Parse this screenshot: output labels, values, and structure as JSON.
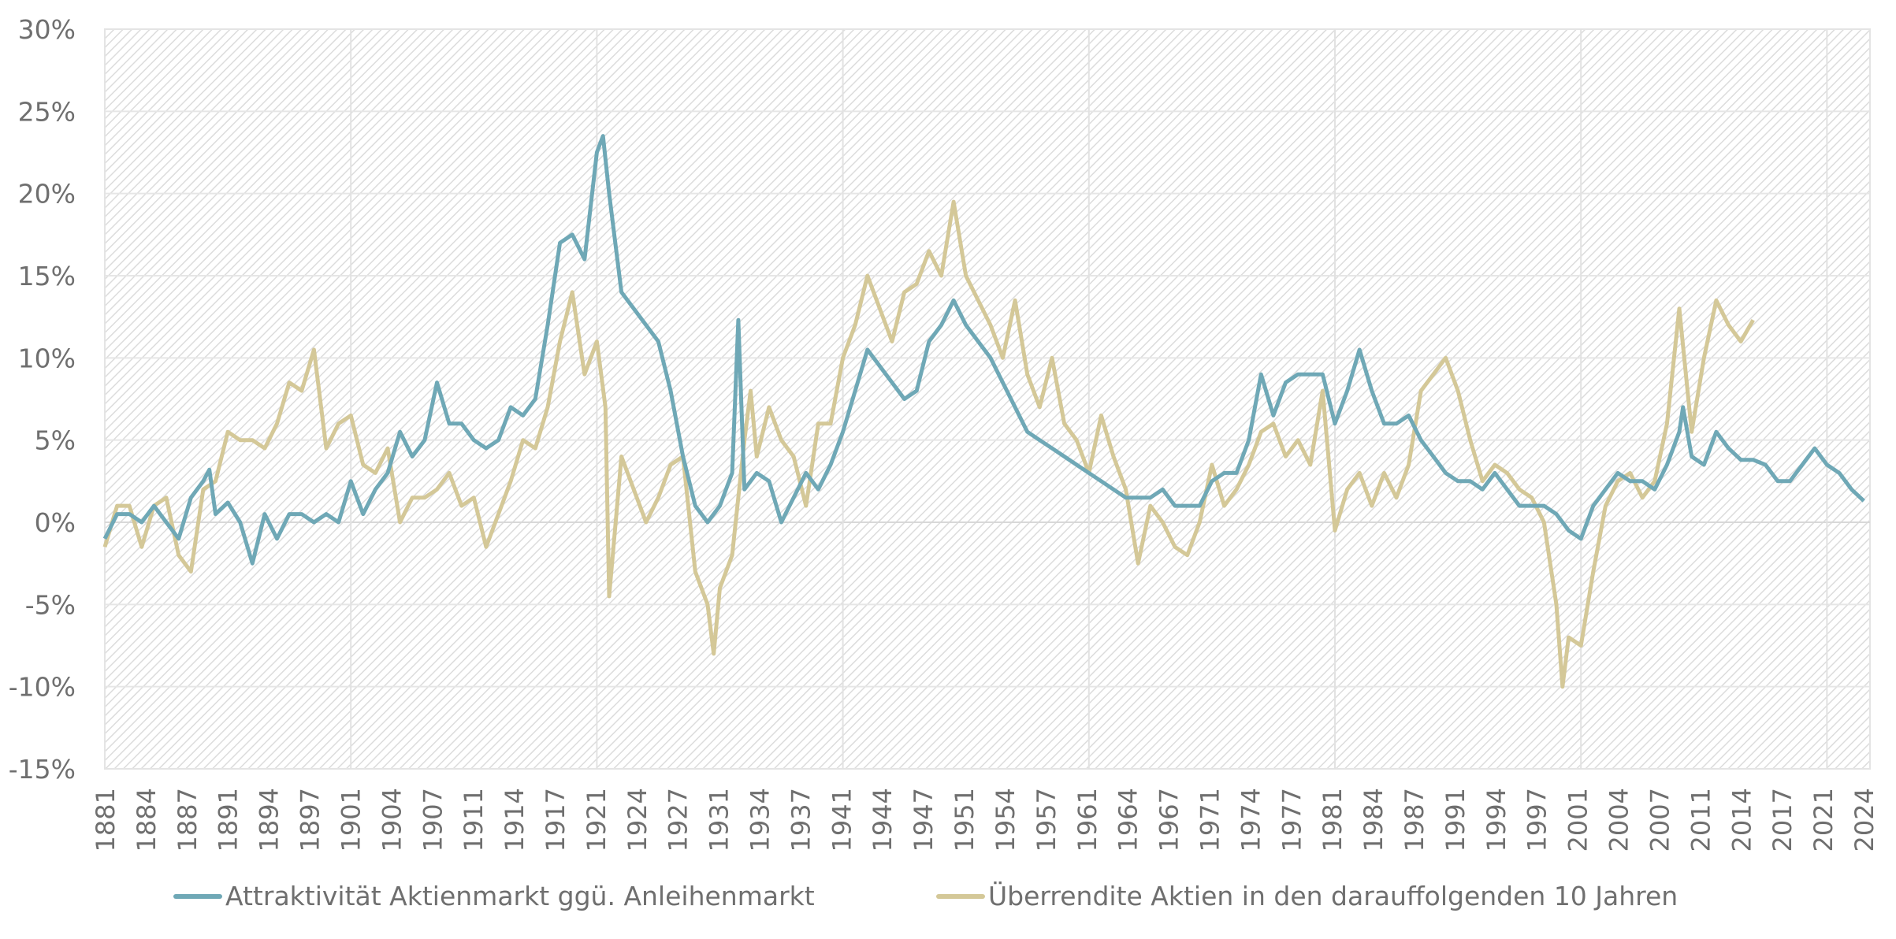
{
  "chart_data": {
    "type": "line",
    "title": "",
    "xlabel": "",
    "ylabel": "",
    "xlim": [
      1881,
      2024.5
    ],
    "ylim": [
      -15,
      30
    ],
    "y_ticks": [
      "30%",
      "25%",
      "20%",
      "15%",
      "10%",
      "5%",
      "0%",
      "-5%",
      "-10%",
      "-15%"
    ],
    "y_tick_values": [
      30,
      25,
      20,
      15,
      10,
      5,
      0,
      -5,
      -10,
      -15
    ],
    "x_ticks": [
      "1881",
      "1884",
      "1887",
      "1891",
      "1894",
      "1897",
      "1901",
      "1904",
      "1907",
      "1911",
      "1914",
      "1917",
      "1921",
      "1924",
      "1927",
      "1931",
      "1934",
      "1937",
      "1941",
      "1944",
      "1947",
      "1951",
      "1954",
      "1957",
      "1961",
      "1964",
      "1967",
      "1971",
      "1974",
      "1977",
      "1981",
      "1984",
      "1987",
      "1991",
      "1994",
      "1997",
      "2001",
      "2004",
      "2007",
      "2011",
      "2014",
      "2017",
      "2021",
      "2024"
    ],
    "vertical_grid_years": [
      1901,
      1921,
      1941,
      1961,
      1981,
      2001,
      2021
    ],
    "grid": true,
    "background": "diagonal-hatch",
    "legend_position": "bottom",
    "series": [
      {
        "name": "Attraktivität Aktienmarkt ggü. Anleihenmarkt",
        "color": "#6fa8b6",
        "points": [
          [
            1881,
            -1
          ],
          [
            1882,
            0.5
          ],
          [
            1883,
            0.5
          ],
          [
            1884,
            0
          ],
          [
            1885,
            1
          ],
          [
            1886,
            0
          ],
          [
            1887,
            -1
          ],
          [
            1888,
            1.5
          ],
          [
            1889,
            2.5
          ],
          [
            1889.5,
            3.2
          ],
          [
            1890,
            0.5
          ],
          [
            1891,
            1.2
          ],
          [
            1892,
            0
          ],
          [
            1893,
            -2.5
          ],
          [
            1894,
            0.5
          ],
          [
            1895,
            -1
          ],
          [
            1896,
            0.5
          ],
          [
            1897,
            0.5
          ],
          [
            1898,
            0
          ],
          [
            1899,
            0.5
          ],
          [
            1900,
            0
          ],
          [
            1901,
            2.5
          ],
          [
            1902,
            0.5
          ],
          [
            1903,
            2
          ],
          [
            1904,
            3
          ],
          [
            1905,
            5.5
          ],
          [
            1906,
            4
          ],
          [
            1907,
            5
          ],
          [
            1908,
            8.5
          ],
          [
            1909,
            6
          ],
          [
            1910,
            6
          ],
          [
            1911,
            5
          ],
          [
            1912,
            4.5
          ],
          [
            1913,
            5
          ],
          [
            1914,
            7
          ],
          [
            1915,
            6.5
          ],
          [
            1916,
            7.5
          ],
          [
            1917,
            12
          ],
          [
            1918,
            17
          ],
          [
            1919,
            17.5
          ],
          [
            1920,
            16
          ],
          [
            1921,
            22.5
          ],
          [
            1921.5,
            23.5
          ],
          [
            1922,
            20
          ],
          [
            1923,
            14
          ],
          [
            1924,
            13
          ],
          [
            1925,
            12
          ],
          [
            1926,
            11
          ],
          [
            1927,
            8
          ],
          [
            1928,
            4
          ],
          [
            1929,
            1
          ],
          [
            1930,
            0
          ],
          [
            1931,
            1
          ],
          [
            1932,
            3
          ],
          [
            1932.5,
            12.3
          ],
          [
            1933,
            2
          ],
          [
            1934,
            3
          ],
          [
            1935,
            2.5
          ],
          [
            1936,
            0
          ],
          [
            1937,
            1.5
          ],
          [
            1938,
            3
          ],
          [
            1939,
            2
          ],
          [
            1940,
            3.5
          ],
          [
            1941,
            5.5
          ],
          [
            1942,
            8
          ],
          [
            1943,
            10.5
          ],
          [
            1944,
            9.5
          ],
          [
            1945,
            8.5
          ],
          [
            1946,
            7.5
          ],
          [
            1947,
            8
          ],
          [
            1948,
            11
          ],
          [
            1949,
            12
          ],
          [
            1950,
            13.5
          ],
          [
            1951,
            12
          ],
          [
            1952,
            11
          ],
          [
            1953,
            10
          ],
          [
            1954,
            8.5
          ],
          [
            1955,
            7
          ],
          [
            1956,
            5.5
          ],
          [
            1957,
            5
          ],
          [
            1958,
            4.5
          ],
          [
            1959,
            4
          ],
          [
            1960,
            3.5
          ],
          [
            1961,
            3
          ],
          [
            1962,
            2.5
          ],
          [
            1963,
            2
          ],
          [
            1964,
            1.5
          ],
          [
            1965,
            1.5
          ],
          [
            1966,
            1.5
          ],
          [
            1967,
            2
          ],
          [
            1968,
            1
          ],
          [
            1969,
            1
          ],
          [
            1970,
            1
          ],
          [
            1971,
            2.5
          ],
          [
            1972,
            3
          ],
          [
            1973,
            3
          ],
          [
            1974,
            5
          ],
          [
            1975,
            9
          ],
          [
            1976,
            6.5
          ],
          [
            1977,
            8.5
          ],
          [
            1978,
            9
          ],
          [
            1979,
            9
          ],
          [
            1980,
            9
          ],
          [
            1981,
            6
          ],
          [
            1982,
            8
          ],
          [
            1983,
            10.5
          ],
          [
            1984,
            8
          ],
          [
            1985,
            6
          ],
          [
            1986,
            6
          ],
          [
            1987,
            6.5
          ],
          [
            1988,
            5
          ],
          [
            1989,
            4
          ],
          [
            1990,
            3
          ],
          [
            1991,
            2.5
          ],
          [
            1992,
            2.5
          ],
          [
            1993,
            2
          ],
          [
            1994,
            3
          ],
          [
            1995,
            2
          ],
          [
            1996,
            1
          ],
          [
            1997,
            1
          ],
          [
            1998,
            1
          ],
          [
            1999,
            0.5
          ],
          [
            2000,
            -0.5
          ],
          [
            2001,
            -1
          ],
          [
            2002,
            1
          ],
          [
            2003,
            2
          ],
          [
            2004,
            3
          ],
          [
            2005,
            2.5
          ],
          [
            2006,
            2.5
          ],
          [
            2007,
            2
          ],
          [
            2008,
            3.5
          ],
          [
            2009,
            5.5
          ],
          [
            2009.3,
            7
          ],
          [
            2010,
            4
          ],
          [
            2011,
            3.5
          ],
          [
            2012,
            5.5
          ],
          [
            2013,
            4.5
          ],
          [
            2014,
            3.8
          ],
          [
            2015,
            3.8
          ],
          [
            2016,
            3.5
          ],
          [
            2017,
            2.5
          ],
          [
            2018,
            2.5
          ],
          [
            2019,
            3.5
          ],
          [
            2020,
            4.5
          ],
          [
            2021,
            3.5
          ],
          [
            2022,
            3
          ],
          [
            2023,
            2
          ],
          [
            2024,
            1.3
          ]
        ]
      },
      {
        "name": "Überrendite Aktien in den darauffolgenden 10 Jahren",
        "color": "#d4c898",
        "points": [
          [
            1881,
            -1.5
          ],
          [
            1882,
            1
          ],
          [
            1883,
            1
          ],
          [
            1884,
            -1.5
          ],
          [
            1885,
            1
          ],
          [
            1886,
            1.5
          ],
          [
            1887,
            -2
          ],
          [
            1888,
            -3
          ],
          [
            1889,
            2
          ],
          [
            1890,
            2.5
          ],
          [
            1891,
            5.5
          ],
          [
            1892,
            5
          ],
          [
            1893,
            5
          ],
          [
            1894,
            4.5
          ],
          [
            1895,
            6
          ],
          [
            1896,
            8.5
          ],
          [
            1897,
            8
          ],
          [
            1898,
            10.5
          ],
          [
            1899,
            4.5
          ],
          [
            1900,
            6
          ],
          [
            1901,
            6.5
          ],
          [
            1902,
            3.5
          ],
          [
            1903,
            3
          ],
          [
            1904,
            4.5
          ],
          [
            1905,
            0
          ],
          [
            1906,
            1.5
          ],
          [
            1907,
            1.5
          ],
          [
            1908,
            2
          ],
          [
            1909,
            3
          ],
          [
            1910,
            1
          ],
          [
            1911,
            1.5
          ],
          [
            1912,
            -1.5
          ],
          [
            1913,
            0.5
          ],
          [
            1914,
            2.5
          ],
          [
            1915,
            5
          ],
          [
            1916,
            4.5
          ],
          [
            1917,
            7
          ],
          [
            1918,
            11
          ],
          [
            1919,
            14
          ],
          [
            1920,
            9
          ],
          [
            1921,
            11
          ],
          [
            1921.7,
            7
          ],
          [
            1922,
            -4.5
          ],
          [
            1923,
            4
          ],
          [
            1924,
            2
          ],
          [
            1925,
            0
          ],
          [
            1926,
            1.5
          ],
          [
            1927,
            3.5
          ],
          [
            1928,
            4
          ],
          [
            1929,
            -3
          ],
          [
            1930,
            -5
          ],
          [
            1930.5,
            -8
          ],
          [
            1931,
            -4
          ],
          [
            1932,
            -2
          ],
          [
            1933,
            5
          ],
          [
            1933.5,
            8
          ],
          [
            1934,
            4
          ],
          [
            1935,
            7
          ],
          [
            1936,
            5
          ],
          [
            1937,
            4
          ],
          [
            1938,
            1
          ],
          [
            1939,
            6
          ],
          [
            1940,
            6
          ],
          [
            1941,
            10
          ],
          [
            1942,
            12
          ],
          [
            1943,
            15
          ],
          [
            1944,
            13
          ],
          [
            1945,
            11
          ],
          [
            1946,
            14
          ],
          [
            1947,
            14.5
          ],
          [
            1948,
            16.5
          ],
          [
            1949,
            15
          ],
          [
            1950,
            19.5
          ],
          [
            1951,
            15
          ],
          [
            1952,
            13.5
          ],
          [
            1953,
            12
          ],
          [
            1954,
            10
          ],
          [
            1955,
            13.5
          ],
          [
            1956,
            9
          ],
          [
            1957,
            7
          ],
          [
            1958,
            10
          ],
          [
            1959,
            6
          ],
          [
            1960,
            5
          ],
          [
            1961,
            3
          ],
          [
            1962,
            6.5
          ],
          [
            1963,
            4
          ],
          [
            1964,
            2
          ],
          [
            1965,
            -2.5
          ],
          [
            1966,
            1
          ],
          [
            1967,
            0
          ],
          [
            1968,
            -1.5
          ],
          [
            1969,
            -2
          ],
          [
            1970,
            0
          ],
          [
            1971,
            3.5
          ],
          [
            1972,
            1
          ],
          [
            1973,
            2
          ],
          [
            1974,
            3.5
          ],
          [
            1975,
            5.5
          ],
          [
            1976,
            6
          ],
          [
            1977,
            4
          ],
          [
            1978,
            5
          ],
          [
            1979,
            3.5
          ],
          [
            1980,
            8
          ],
          [
            1981,
            -0.5
          ],
          [
            1982,
            2
          ],
          [
            1983,
            3
          ],
          [
            1984,
            1
          ],
          [
            1985,
            3
          ],
          [
            1986,
            1.5
          ],
          [
            1987,
            3.5
          ],
          [
            1988,
            8
          ],
          [
            1989,
            9
          ],
          [
            1990,
            10
          ],
          [
            1991,
            8
          ],
          [
            1992,
            5
          ],
          [
            1993,
            2.5
          ],
          [
            1994,
            3.5
          ],
          [
            1995,
            3
          ],
          [
            1996,
            2
          ],
          [
            1997,
            1.5
          ],
          [
            1998,
            0
          ],
          [
            1999,
            -5
          ],
          [
            1999.5,
            -10
          ],
          [
            2000,
            -7
          ],
          [
            2001,
            -7.5
          ],
          [
            2002,
            -3
          ],
          [
            2003,
            1
          ],
          [
            2004,
            2.5
          ],
          [
            2005,
            3
          ],
          [
            2006,
            1.5
          ],
          [
            2007,
            2.5
          ],
          [
            2008,
            6
          ],
          [
            2009,
            13
          ],
          [
            2010,
            5.5
          ],
          [
            2011,
            10
          ],
          [
            2012,
            13.5
          ],
          [
            2013,
            12
          ],
          [
            2014,
            11
          ],
          [
            2015,
            12.3
          ]
        ]
      }
    ]
  },
  "legend": {
    "items": [
      {
        "label": "Attraktivität Aktienmarkt ggü. Anleihenmarkt",
        "color": "#6fa8b6"
      },
      {
        "label": "Überrendite Aktien in den darauffolgenden 10 Jahren",
        "color": "#d4c898"
      }
    ]
  }
}
